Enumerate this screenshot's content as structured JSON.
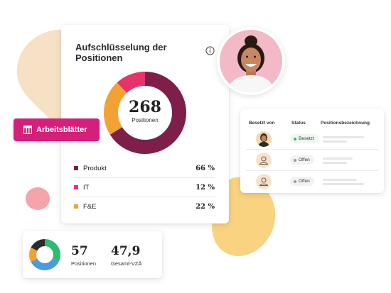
{
  "colors": {
    "accent_pink": "#d4207a",
    "produkt": "#7d1f48",
    "it": "#e6336a",
    "fe": "#f2a233",
    "blob_beige": "#f6e1c4",
    "blob_yellow": "#f9d37f",
    "blob_pink": "#f6a3ab"
  },
  "main_card": {
    "title": "Aufschlüsselung der Positionen",
    "info_icon": "info-circle-icon",
    "total": "268",
    "total_label": "Positionen",
    "breakdown": [
      {
        "label": "Produkt",
        "pct_text": "66 %",
        "value": 66,
        "color": "#7d1f48"
      },
      {
        "label": "IT",
        "pct_text": "12 %",
        "value": 12,
        "color": "#e6336a"
      },
      {
        "label": "F&E",
        "pct_text": "22 %",
        "value": 22,
        "color": "#f2a233"
      }
    ]
  },
  "worksheets_button": {
    "label": "Arbeitsblätter",
    "icon": "table-icon"
  },
  "positions_table": {
    "headers": [
      "Besetzt von",
      "Status",
      "Positionsbezeichnung"
    ],
    "rows": [
      {
        "avatar": "person-photo",
        "status": "Besetzt",
        "status_color": "#3bb56a"
      },
      {
        "avatar": "person-placeholder-icon",
        "status": "Offen",
        "status_color": "#9a9a9a"
      },
      {
        "avatar": "person-placeholder-icon",
        "status": "Offen",
        "status_color": "#9a9a9a"
      }
    ]
  },
  "summary": {
    "positions_value": "57",
    "positions_label": "Positionen",
    "fte_value": "47,9",
    "fte_label": "Gesamt-VZÄ"
  }
}
